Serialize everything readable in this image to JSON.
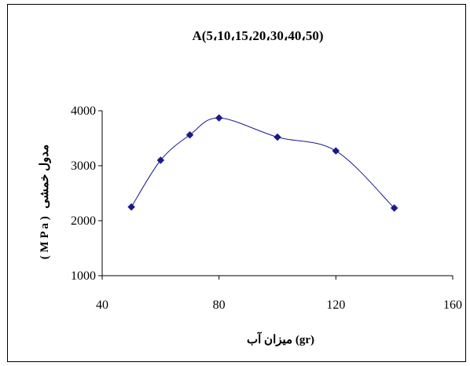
{
  "chart_data": {
    "type": "line",
    "title": "A(5،10،15،20،30،40،50)",
    "xlabel": "میزان آب  (gr)",
    "ylabel_text": "مدول خمشی",
    "ylabel_unit": "( M P a )",
    "xlim": [
      40,
      160
    ],
    "ylim": [
      1000,
      4000
    ],
    "x_ticks": [
      40,
      80,
      120,
      160
    ],
    "y_ticks": [
      1000,
      2000,
      3000,
      4000
    ],
    "grid": false,
    "smooth": true,
    "series": [
      {
        "x": [
          50,
          60,
          70,
          80,
          100,
          120,
          140
        ],
        "values": [
          2250,
          3100,
          3560,
          3870,
          3520,
          3270,
          2230
        ],
        "color": "#1a1a8c"
      }
    ]
  }
}
